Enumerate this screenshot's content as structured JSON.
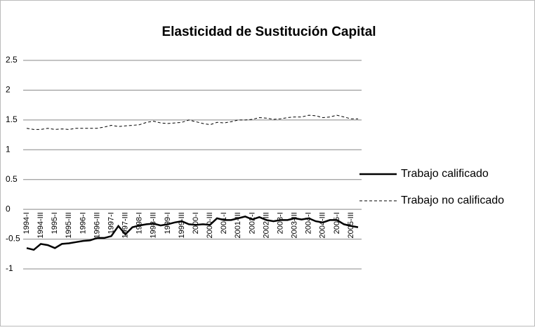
{
  "chart_data": {
    "type": "line",
    "title": "Elasticidad de Sustitución Capital",
    "categories": [
      "1994-I",
      null,
      "1994-III",
      null,
      "1995-I",
      null,
      "1995-III",
      null,
      "1996-I",
      null,
      "1996-III",
      null,
      "1997-I",
      null,
      "1997-III",
      null,
      "1998-I",
      null,
      "1998-III",
      null,
      "1999-I",
      null,
      "1999-III",
      null,
      "2000-I",
      null,
      "2000-III",
      null,
      "2001-I",
      null,
      "2001-III",
      null,
      "2002-I",
      null,
      "2002-III",
      null,
      "2003-I",
      null,
      "2003-III",
      null,
      "2004-I",
      null,
      "2004-III",
      null,
      "2005-I",
      null,
      "2005-III",
      null
    ],
    "series": [
      {
        "name": "Trabajo calificado",
        "color": "#000000",
        "dash": "solid",
        "values": [
          -0.65,
          -0.68,
          -0.58,
          -0.6,
          -0.65,
          -0.58,
          -0.57,
          -0.55,
          -0.53,
          -0.52,
          -0.48,
          -0.48,
          -0.45,
          -0.28,
          -0.42,
          -0.3,
          -0.27,
          -0.25,
          -0.24,
          -0.27,
          -0.25,
          -0.22,
          -0.2,
          -0.25,
          -0.26,
          -0.25,
          -0.26,
          -0.15,
          -0.18,
          -0.18,
          -0.15,
          -0.12,
          -0.17,
          -0.13,
          -0.18,
          -0.2,
          -0.18,
          -0.18,
          -0.15,
          -0.17,
          -0.15,
          -0.2,
          -0.22,
          -0.18,
          -0.18,
          -0.25,
          -0.28,
          -0.3
        ]
      },
      {
        "name": "Trabajo no calificado",
        "color": "#000000",
        "dash": "dashed",
        "values": [
          1.36,
          1.34,
          1.34,
          1.36,
          1.34,
          1.35,
          1.34,
          1.36,
          1.36,
          1.36,
          1.36,
          1.38,
          1.41,
          1.39,
          1.4,
          1.41,
          1.42,
          1.46,
          1.48,
          1.45,
          1.44,
          1.45,
          1.46,
          1.5,
          1.47,
          1.44,
          1.42,
          1.46,
          1.45,
          1.47,
          1.5,
          1.5,
          1.51,
          1.54,
          1.53,
          1.51,
          1.52,
          1.54,
          1.55,
          1.55,
          1.58,
          1.57,
          1.54,
          1.55,
          1.58,
          1.55,
          1.52,
          1.52
        ]
      }
    ],
    "ylim": [
      -1,
      2.5
    ],
    "yticks": [
      -1,
      -0.5,
      0,
      0.5,
      1,
      1.5,
      2,
      2.5
    ],
    "grid": true,
    "legend": "right"
  }
}
